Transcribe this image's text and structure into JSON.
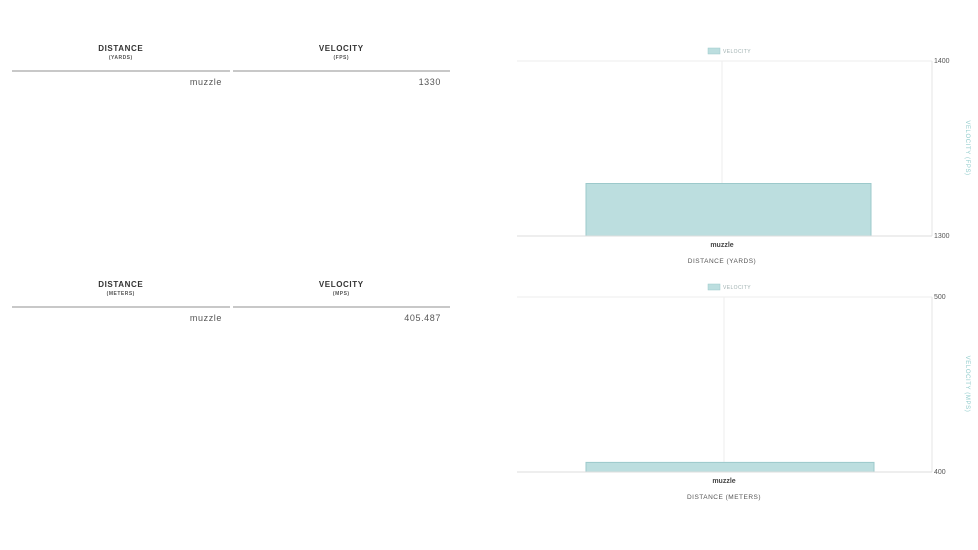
{
  "tables": [
    {
      "columns": [
        {
          "title": "DISTANCE",
          "subtitle": "(YARDS)"
        },
        {
          "title": "VELOCITY",
          "subtitle": "(FPS)"
        }
      ],
      "rows": [
        [
          "muzzle",
          "1330"
        ]
      ]
    },
    {
      "columns": [
        {
          "title": "DISTANCE",
          "subtitle": "(METERS)"
        },
        {
          "title": "VELOCITY",
          "subtitle": "(MPS)"
        }
      ],
      "rows": [
        [
          "muzzle",
          "405.487"
        ]
      ]
    }
  ],
  "chart_data": [
    {
      "type": "bar",
      "categories": [
        "muzzle"
      ],
      "series": [
        {
          "name": "VELOCITY",
          "values": [
            1330
          ]
        }
      ],
      "xlabel": "DISTANCE (YARDS)",
      "ylabel": "VELOCITY (FPS)",
      "ylim": [
        1300,
        1400
      ],
      "yticks": [
        "1400",
        "1300"
      ],
      "y_axis_side": "right",
      "legend": "top-center",
      "grid": true,
      "bar_color": "#bcdedf",
      "bar_border": "#9cc9cb"
    },
    {
      "type": "bar",
      "categories": [
        "muzzle"
      ],
      "series": [
        {
          "name": "VELOCITY",
          "values": [
            405.487
          ]
        }
      ],
      "xlabel": "DISTANCE (METERS)",
      "ylabel": "VELOCITY (MPS)",
      "ylim": [
        400,
        500
      ],
      "yticks": [
        "500",
        "400"
      ],
      "y_axis_side": "right",
      "legend": "top-center",
      "grid": true,
      "bar_color": "#bcdedf",
      "bar_border": "#9cc9cb"
    }
  ]
}
